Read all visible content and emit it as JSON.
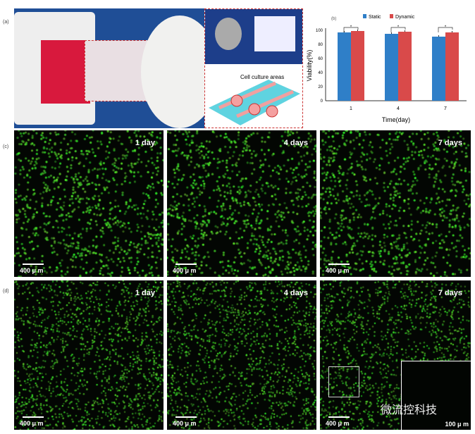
{
  "panels": {
    "a": "(a)",
    "b": "(b)",
    "c": "(c)",
    "d": "(d)"
  },
  "inset": {
    "annotation": "Cell culture areas"
  },
  "chart_data": {
    "type": "bar",
    "categories": [
      "1",
      "4",
      "7"
    ],
    "series": [
      {
        "name": "Static",
        "values": [
          97,
          95,
          91
        ],
        "color": "#2f7fc8"
      },
      {
        "name": "Dynamic",
        "values": [
          99,
          98,
          97
        ],
        "color": "#d94a4a"
      }
    ],
    "xlabel": "Time(day)",
    "ylabel": "Viability(%)",
    "ylim": [
      0,
      100
    ],
    "yticks": [
      "0",
      "20",
      "40",
      "60",
      "80",
      "100"
    ],
    "significance": [
      "*",
      "*",
      "*"
    ],
    "legend": "top"
  },
  "rows": [
    {
      "images": [
        {
          "day": "1 day",
          "scale": "400 μ m"
        },
        {
          "day": "4 days",
          "scale": "400 μ m"
        },
        {
          "day": "7 days",
          "scale": "400 μ m"
        }
      ]
    },
    {
      "images": [
        {
          "day": "1 day",
          "scale": "400 μ m"
        },
        {
          "day": "4 days",
          "scale": "400 μ m"
        },
        {
          "day": "7 days",
          "scale": "400 μ m"
        }
      ]
    }
  ],
  "zoom_inset": {
    "scale": "100 μ m"
  },
  "watermark": "微流控科技"
}
